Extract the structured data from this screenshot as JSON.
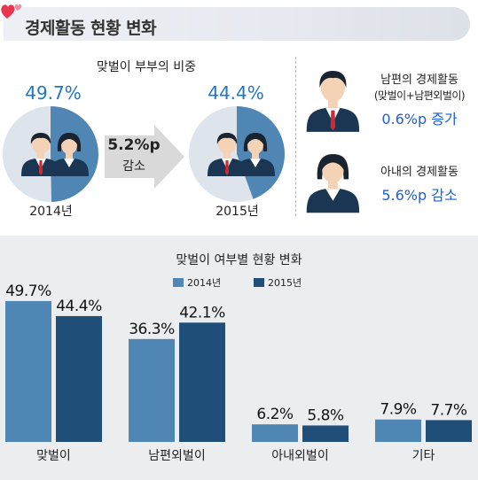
{
  "header": {
    "title": "경제활동 현황 변화",
    "heart_colors": [
      "#e8364f",
      "#f28ba0"
    ]
  },
  "top_left": {
    "title": "맞벌이 부부의 비중",
    "left_pie": {
      "percent_label": "49.7%",
      "value": 49.7,
      "year": "2014년"
    },
    "right_pie": {
      "percent_label": "44.4%",
      "value": 44.4,
      "year": "2015년"
    },
    "arrow": {
      "line1": "5.2%p",
      "line2": "감소"
    },
    "colors": {
      "fill": "#4f86b4",
      "empty": "#dde4ec",
      "arrow": "#d9d9d9"
    }
  },
  "top_right": {
    "husband": {
      "line1": "남편의 경제활동",
      "line2": "(맞벌이+남편외벌이)",
      "change": "0.6%p 증가"
    },
    "wife": {
      "line1": "아내의 경제활동",
      "change": "5.6%p 감소"
    }
  },
  "icons": [
    "man-avatar-icon",
    "woman-avatar-icon",
    "right-arrow-icon",
    "heart-icon"
  ],
  "chart_data": {
    "type": "bar",
    "title": "맞벌이 여부별 현황 변화",
    "categories": [
      "맞벌이",
      "남편외벌이",
      "아내외벌이",
      "기타"
    ],
    "series": [
      {
        "name": "2014년",
        "values": [
          49.7,
          36.3,
          6.2,
          7.9
        ],
        "labels": [
          "49.7%",
          "36.3%",
          "6.2%",
          "7.9%"
        ],
        "color": "#4f86b4"
      },
      {
        "name": "2015년",
        "values": [
          44.4,
          42.1,
          5.8,
          7.7
        ],
        "labels": [
          "44.4%",
          "42.1%",
          "5.8%",
          "7.7%"
        ],
        "color": "#1f4f79"
      }
    ],
    "ylim": [
      0,
      55
    ],
    "legend": "top-center",
    "grid": false
  }
}
